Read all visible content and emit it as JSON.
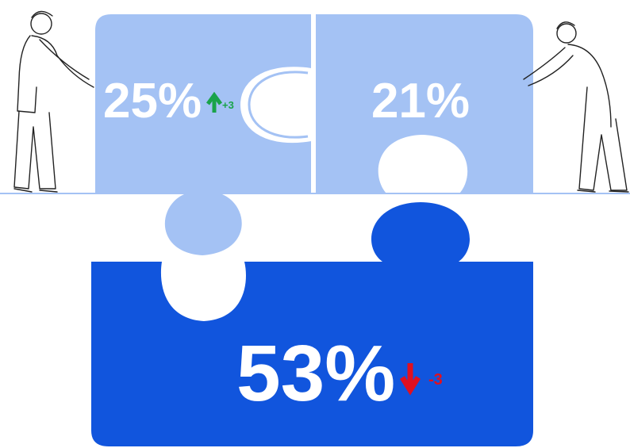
{
  "pieces": [
    {
      "label": "25%",
      "change": "+3"
    },
    {
      "label": "21%"
    },
    {
      "label": "53%",
      "change": "-3"
    }
  ]
}
